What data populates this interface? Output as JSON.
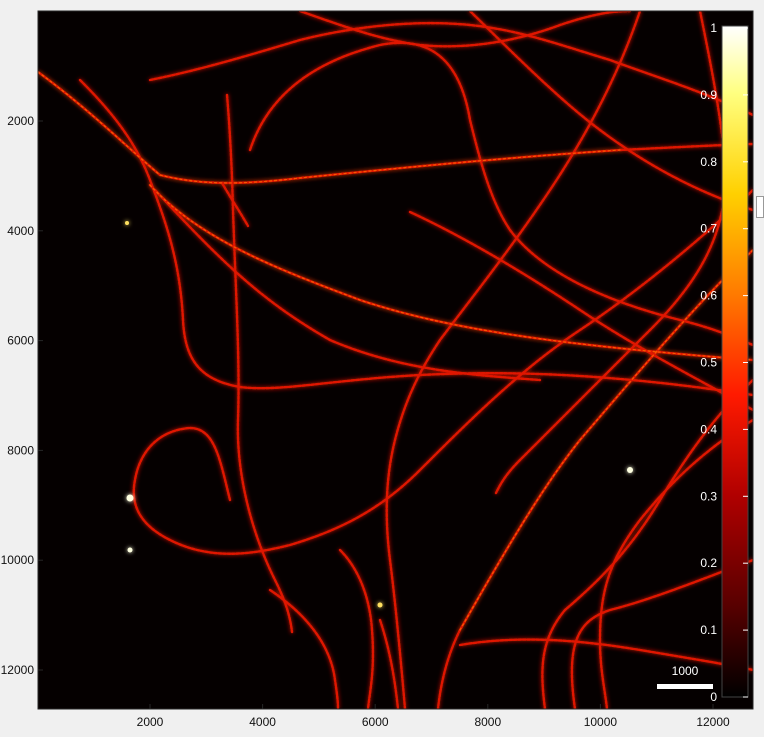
{
  "image": {
    "content": "fluorescence microscopy image of filament network",
    "colormap": "hot",
    "background": "#000000"
  },
  "x_axis": {
    "ticks": [
      "2000",
      "4000",
      "6000",
      "8000",
      "10000",
      "12000"
    ]
  },
  "y_axis": {
    "ticks": [
      "2000",
      "4000",
      "6000",
      "8000",
      "10000",
      "12000"
    ]
  },
  "colorbar": {
    "ticks": [
      "1",
      "0.9",
      "0.8",
      "0.7",
      "0.6",
      "0.5",
      "0.4",
      "0.3",
      "0.2",
      "0.1",
      "0"
    ],
    "colors": [
      "#000000",
      "#5a0000",
      "#b00000",
      "#ff1a00",
      "#ff7a00",
      "#ffd000",
      "#ffff80",
      "#ffffff"
    ]
  },
  "scale_bar": {
    "label": "1000",
    "color": "#ffffff"
  }
}
